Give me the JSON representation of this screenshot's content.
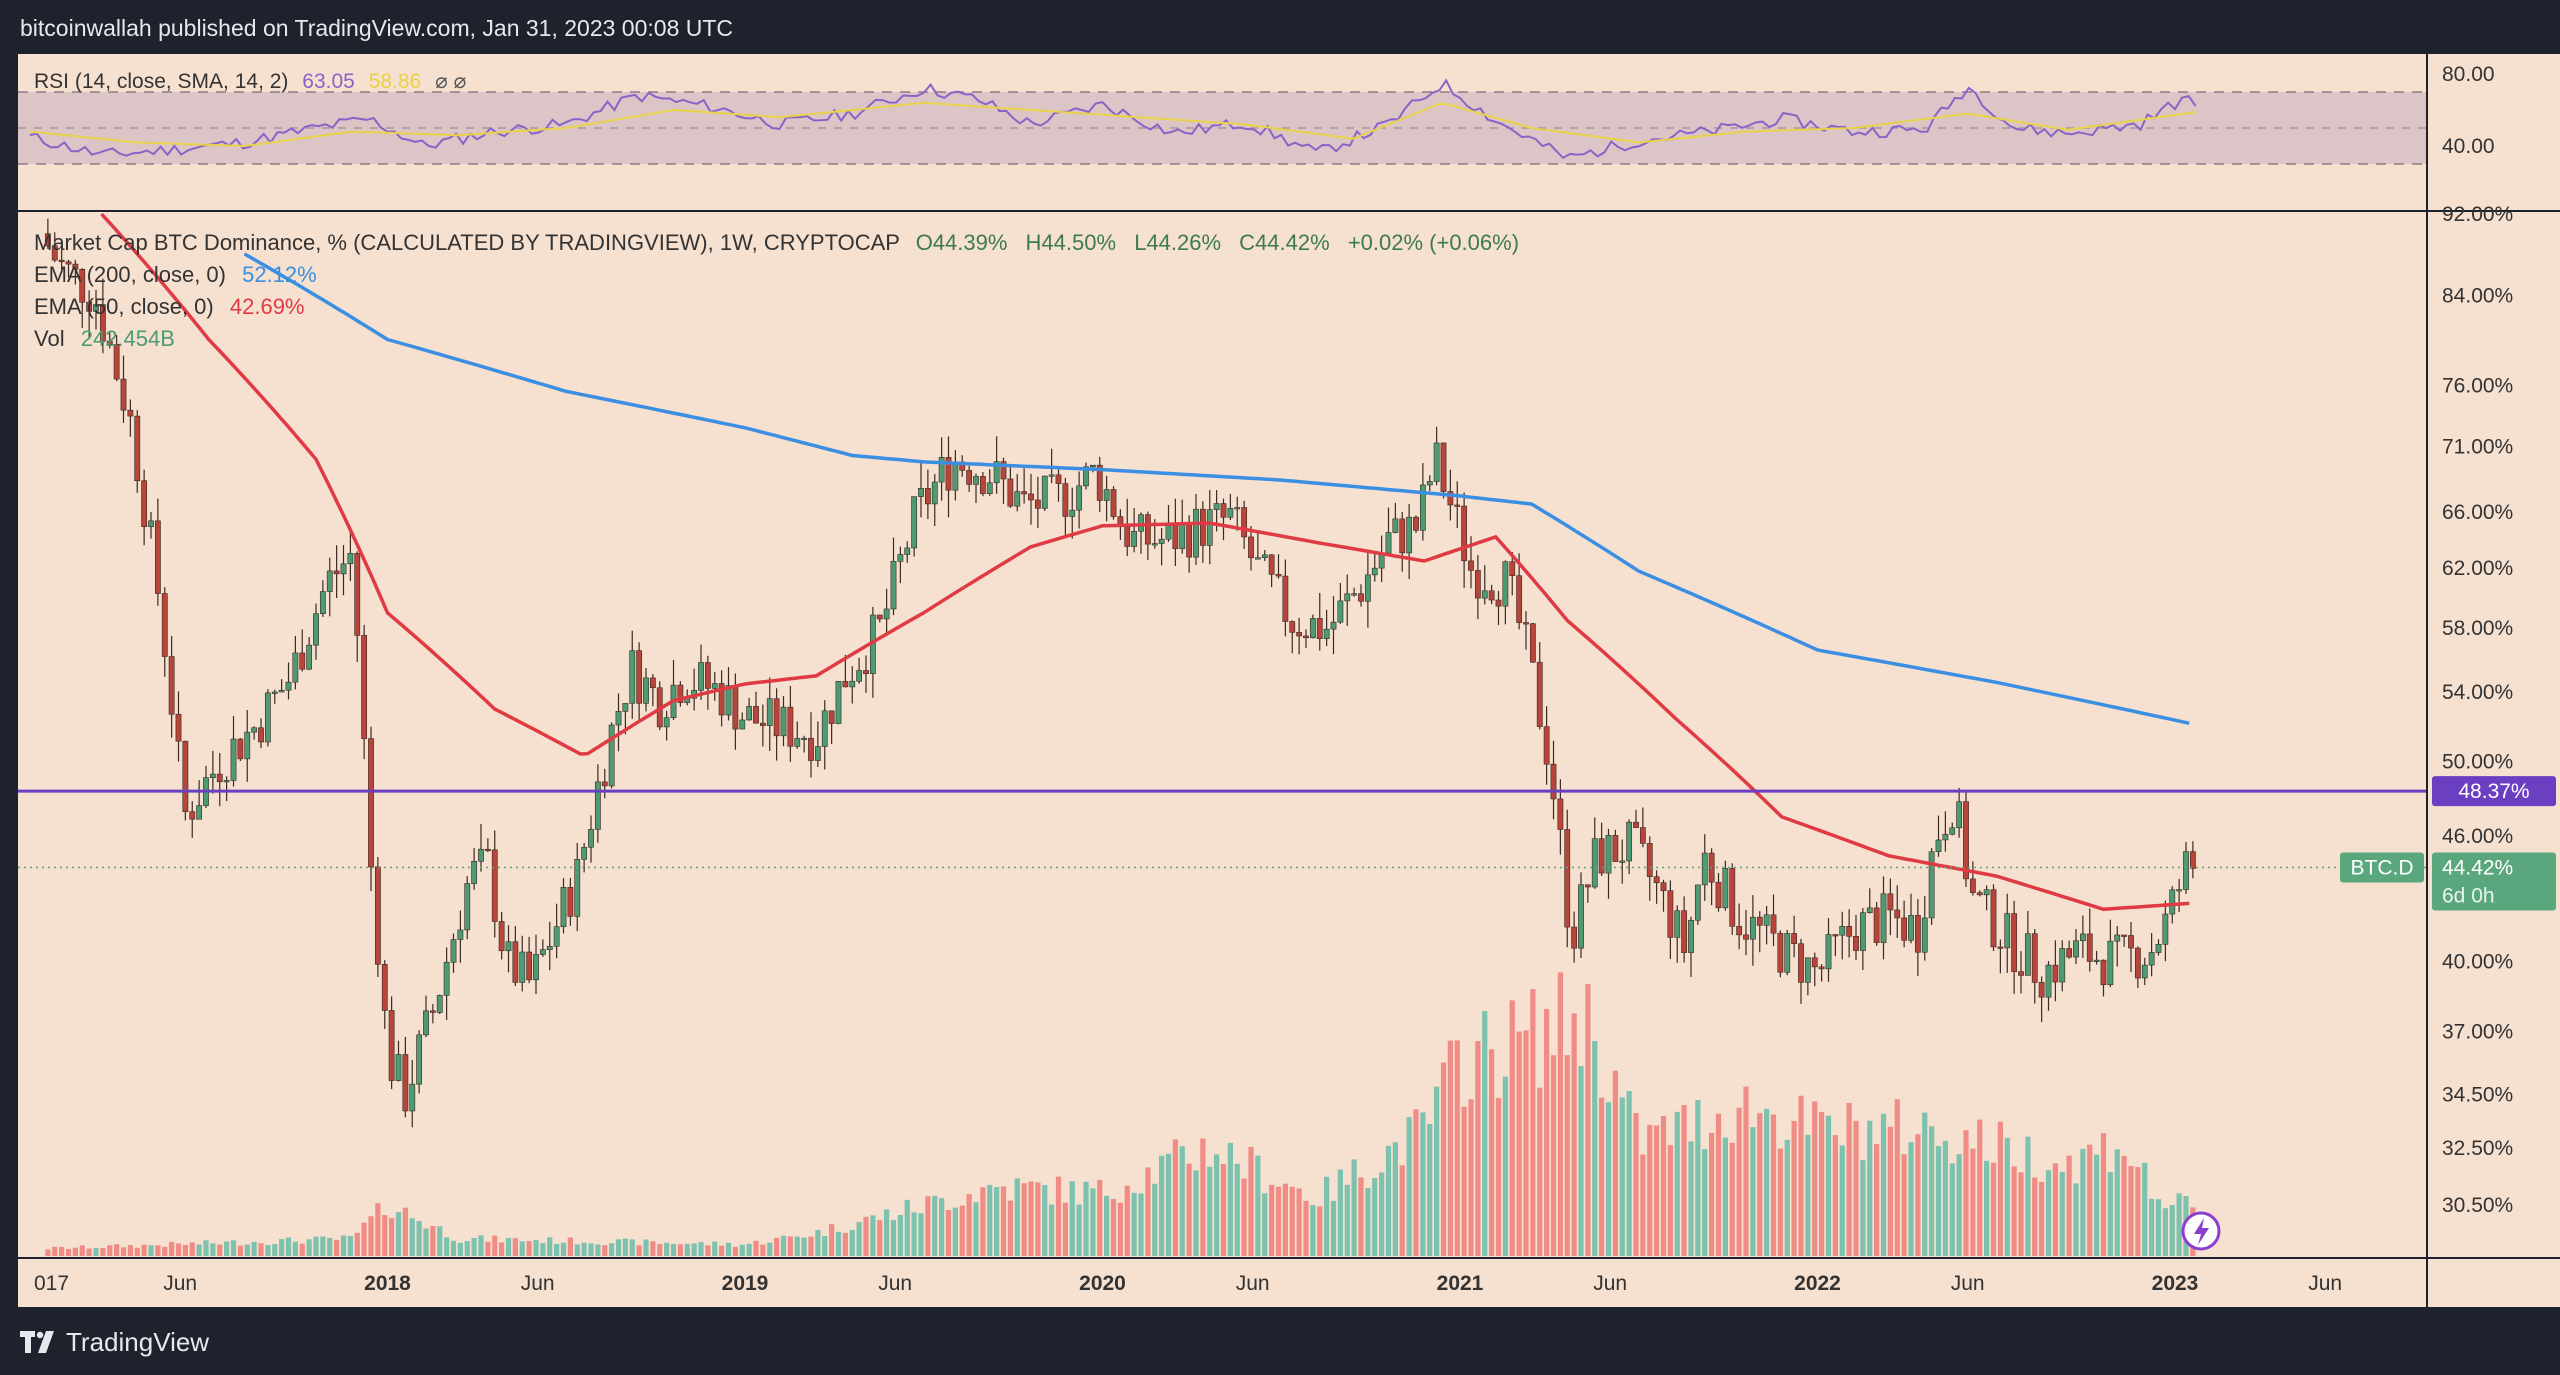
{
  "header": {
    "published": "bitcoinwallah published on TradingView.com, Jan 31, 2023 00:08 UTC"
  },
  "footer": {
    "logo_text": "TradingView",
    "logo_icon": "tradingview-logo-icon"
  },
  "colors": {
    "background": "#f6e0cf",
    "frame": "#1e222d",
    "ema200": "#3b8fe3",
    "ema50": "#e03a45",
    "rsi": "#8a63c8",
    "rsi_sma": "#e8d24a",
    "up_candle": "#4e9b73",
    "down_candle": "#b8453b",
    "vol_up": "#7cc2ae",
    "vol_down": "#ef8c86",
    "hline": "#6a3fc2",
    "price_tag": "#5aa77e"
  },
  "rsi_pane": {
    "legend_name": "RSI (14, close, SMA, 14, 2)",
    "legend_rsi": "63.05",
    "legend_sma": "58.86",
    "legend_extra": "⌀  ⌀",
    "axis_labels": [
      "80.00",
      "40.00"
    ],
    "upper_band": 70,
    "middle_band": 50,
    "lower_band": 30
  },
  "main_pane": {
    "legend_title": "Market Cap BTC Dominance, % (CALCULATED BY TRADINGVIEW), 1W, CRYPTOCAP",
    "legend_open": "O44.39%",
    "legend_high": "H44.50%",
    "legend_low": "L44.26%",
    "legend_close": "C44.42%",
    "legend_change": "+0.02% (+0.06%)",
    "ema200_label": "EMA (200, close, 0)",
    "ema200_value": "52.12%",
    "ema50_label": "EMA (50, close, 0)",
    "ema50_value": "42.69%",
    "vol_label": "Vol",
    "vol_value": "242.454B",
    "hline_value": "48.37%",
    "symbol_tag": "BTC.D",
    "last_price_tag": "44.42%",
    "countdown_tag": "6d 0h",
    "hline_level": 48.37,
    "last_price": 44.42
  },
  "chart_data": {
    "type": "line",
    "title": "Market Cap BTC Dominance, % (CALCULATED BY TRADINGVIEW), 1W, CRYPTOCAP",
    "y_scale": "log",
    "ylim": [
      29.0,
      93.0
    ],
    "y_ticks": [
      "92.00%",
      "84.00%",
      "76.00%",
      "71.00%",
      "66.00%",
      "62.00%",
      "58.00%",
      "54.00%",
      "50.00%",
      "46.00%",
      "40.00%",
      "37.00%",
      "34.50%",
      "32.50%",
      "30.50%"
    ],
    "x_ticks": [
      "017",
      "Jun",
      "2018",
      "Jun",
      "2019",
      "Jun",
      "2020",
      "Jun",
      "2021",
      "Jun",
      "2022",
      "Jun",
      "2023",
      "Jun"
    ],
    "price_path": [
      [
        2017.05,
        90
      ],
      [
        2017.1,
        87
      ],
      [
        2017.2,
        84
      ],
      [
        2017.3,
        73
      ],
      [
        2017.38,
        60
      ],
      [
        2017.45,
        47
      ],
      [
        2017.55,
        50
      ],
      [
        2017.65,
        52
      ],
      [
        2017.75,
        55
      ],
      [
        2017.85,
        61
      ],
      [
        2017.92,
        63
      ],
      [
        2017.97,
        45
      ],
      [
        2018.02,
        36
      ],
      [
        2018.07,
        34.5
      ],
      [
        2018.15,
        38
      ],
      [
        2018.25,
        44
      ],
      [
        2018.3,
        44.5
      ],
      [
        2018.35,
        40
      ],
      [
        2018.42,
        39
      ],
      [
        2018.5,
        42
      ],
      [
        2018.55,
        44
      ],
      [
        2018.65,
        52
      ],
      [
        2018.7,
        55.5
      ],
      [
        2018.78,
        53.5
      ],
      [
        2018.85,
        55
      ],
      [
        2018.95,
        54
      ],
      [
        2019.02,
        52.5
      ],
      [
        2019.12,
        52
      ],
      [
        2019.22,
        51.5
      ],
      [
        2019.3,
        55
      ],
      [
        2019.4,
        58
      ],
      [
        2019.5,
        66
      ],
      [
        2019.6,
        70
      ],
      [
        2019.7,
        69
      ],
      [
        2019.8,
        66.5
      ],
      [
        2019.9,
        67
      ],
      [
        2020.0,
        69
      ],
      [
        2020.1,
        64
      ],
      [
        2020.2,
        64
      ],
      [
        2020.3,
        65
      ],
      [
        2020.38,
        65.5
      ],
      [
        2020.45,
        62
      ],
      [
        2020.55,
        58.5
      ],
      [
        2020.65,
        58
      ],
      [
        2020.75,
        61
      ],
      [
        2020.82,
        64
      ],
      [
        2020.9,
        65
      ],
      [
        2020.95,
        70
      ],
      [
        2021.0,
        66
      ],
      [
        2021.05,
        62
      ],
      [
        2021.15,
        61
      ],
      [
        2021.2,
        57
      ],
      [
        2021.27,
        50
      ],
      [
        2021.33,
        41
      ],
      [
        2021.4,
        45
      ],
      [
        2021.5,
        45.5
      ],
      [
        2021.58,
        43
      ],
      [
        2021.65,
        40.5
      ],
      [
        2021.7,
        45
      ],
      [
        2021.8,
        42
      ],
      [
        2021.92,
        40.5
      ],
      [
        2022.02,
        39.5
      ],
      [
        2022.12,
        41.5
      ],
      [
        2022.22,
        42
      ],
      [
        2022.3,
        41.5
      ],
      [
        2022.35,
        46
      ],
      [
        2022.4,
        48
      ],
      [
        2022.45,
        43
      ],
      [
        2022.55,
        41
      ],
      [
        2022.65,
        39.5
      ],
      [
        2022.75,
        40.5
      ],
      [
        2022.85,
        40
      ],
      [
        2022.95,
        40.5
      ],
      [
        2023.0,
        42
      ],
      [
        2023.05,
        44.4
      ]
    ],
    "ema200": [
      [
        2017.6,
        88
      ],
      [
        2017.8,
        84
      ],
      [
        2018.0,
        80
      ],
      [
        2018.5,
        75.5
      ],
      [
        2019.0,
        72.5
      ],
      [
        2019.3,
        70.3
      ],
      [
        2019.5,
        69.8
      ],
      [
        2020.0,
        69.2
      ],
      [
        2020.5,
        68.4
      ],
      [
        2021.0,
        67.2
      ],
      [
        2021.2,
        66.6
      ],
      [
        2021.5,
        61.8
      ],
      [
        2022.0,
        56.6
      ],
      [
        2022.5,
        54.6
      ],
      [
        2023.05,
        52.12
      ]
    ],
    "ema50": [
      [
        2017.2,
        92
      ],
      [
        2017.5,
        80
      ],
      [
        2017.8,
        70
      ],
      [
        2018.0,
        59
      ],
      [
        2018.3,
        53
      ],
      [
        2018.55,
        50.3
      ],
      [
        2018.8,
        53.5
      ],
      [
        2019.0,
        54.5
      ],
      [
        2019.2,
        55
      ],
      [
        2019.5,
        59
      ],
      [
        2019.8,
        63.5
      ],
      [
        2020.0,
        65
      ],
      [
        2020.3,
        65.2
      ],
      [
        2020.6,
        63.8
      ],
      [
        2020.9,
        62.5
      ],
      [
        2021.1,
        64.2
      ],
      [
        2021.3,
        58.5
      ],
      [
        2021.6,
        52.5
      ],
      [
        2021.9,
        47
      ],
      [
        2022.2,
        45
      ],
      [
        2022.5,
        44
      ],
      [
        2022.8,
        42.4
      ],
      [
        2023.05,
        42.69
      ]
    ],
    "rsi": [
      [
        2017.0,
        45
      ],
      [
        2017.2,
        35
      ],
      [
        2017.4,
        38
      ],
      [
        2017.6,
        42
      ],
      [
        2017.8,
        50
      ],
      [
        2017.95,
        55
      ],
      [
        2018.1,
        40
      ],
      [
        2018.3,
        48
      ],
      [
        2018.5,
        52
      ],
      [
        2018.7,
        68
      ],
      [
        2018.9,
        62
      ],
      [
        2019.1,
        52
      ],
      [
        2019.3,
        58
      ],
      [
        2019.5,
        72
      ],
      [
        2019.65,
        66
      ],
      [
        2019.8,
        52
      ],
      [
        2020.0,
        63
      ],
      [
        2020.2,
        47
      ],
      [
        2020.4,
        53
      ],
      [
        2020.6,
        36
      ],
      [
        2020.8,
        52
      ],
      [
        2020.95,
        75
      ],
      [
        2021.1,
        54
      ],
      [
        2021.3,
        33
      ],
      [
        2021.5,
        43
      ],
      [
        2021.7,
        48
      ],
      [
        2021.9,
        55
      ],
      [
        2022.1,
        48
      ],
      [
        2022.3,
        49
      ],
      [
        2022.42,
        73
      ],
      [
        2022.55,
        50
      ],
      [
        2022.7,
        47
      ],
      [
        2022.9,
        52
      ],
      [
        2023.02,
        66
      ],
      [
        2023.06,
        63.05
      ]
    ],
    "rsi_sma": [
      [
        2017.0,
        48
      ],
      [
        2017.3,
        42
      ],
      [
        2017.6,
        40
      ],
      [
        2017.9,
        48
      ],
      [
        2018.2,
        46
      ],
      [
        2018.5,
        50
      ],
      [
        2018.8,
        60
      ],
      [
        2019.1,
        56
      ],
      [
        2019.5,
        64
      ],
      [
        2019.8,
        60
      ],
      [
        2020.1,
        56
      ],
      [
        2020.4,
        52
      ],
      [
        2020.7,
        44
      ],
      [
        2020.95,
        64
      ],
      [
        2021.2,
        50
      ],
      [
        2021.5,
        42
      ],
      [
        2021.8,
        48
      ],
      [
        2022.1,
        50
      ],
      [
        2022.42,
        58
      ],
      [
        2022.7,
        49
      ],
      [
        2023.06,
        58.86
      ]
    ],
    "volume_profile": [
      [
        2017.0,
        0.6
      ],
      [
        2017.9,
        1.5
      ],
      [
        2018.0,
        4.5
      ],
      [
        2018.2,
        1.5
      ],
      [
        2019.0,
        1.0
      ],
      [
        2019.2,
        2.0
      ],
      [
        2019.45,
        4.0
      ],
      [
        2019.7,
        6.0
      ],
      [
        2020.0,
        5.5
      ],
      [
        2020.3,
        9.5
      ],
      [
        2020.6,
        5.0
      ],
      [
        2020.9,
        11
      ],
      [
        2021.0,
        17
      ],
      [
        2021.2,
        19
      ],
      [
        2021.35,
        21
      ],
      [
        2021.5,
        10
      ],
      [
        2021.8,
        13
      ],
      [
        2022.0,
        11
      ],
      [
        2022.3,
        11
      ],
      [
        2022.45,
        10
      ],
      [
        2022.7,
        8
      ],
      [
        2022.85,
        10
      ],
      [
        2022.95,
        5
      ],
      [
        2023.05,
        4
      ]
    ]
  }
}
